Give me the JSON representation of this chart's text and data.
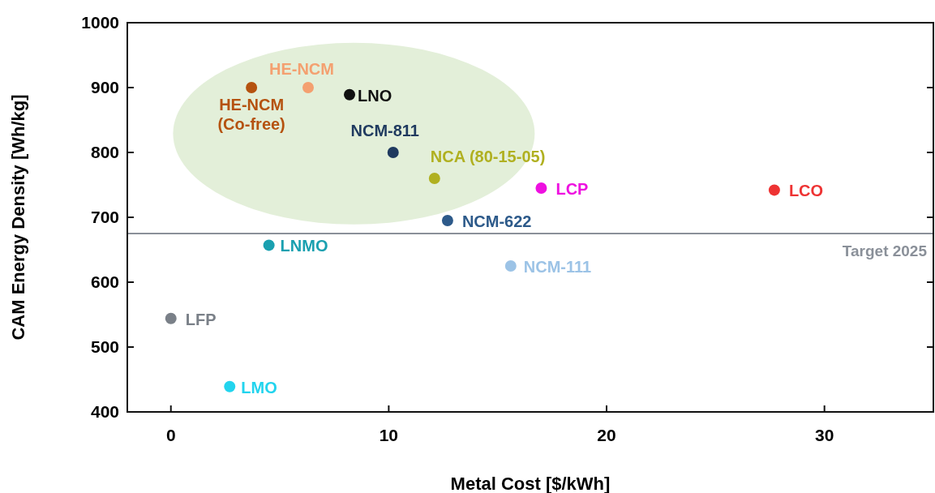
{
  "chart_data": {
    "type": "scatter",
    "xlabel": "Metal Cost [$/kWh]",
    "ylabel": "CAM Energy Density [Wh/kg]",
    "xlim": [
      -2,
      35
    ],
    "xticks": [
      0,
      10,
      20,
      30
    ],
    "ylim": [
      400,
      1000
    ],
    "yticks": [
      400,
      500,
      600,
      700,
      800,
      900,
      1000
    ],
    "grid": false,
    "marker": "circle",
    "ref_lines": [
      {
        "axis": "y",
        "value": 675,
        "label": "Target 2025",
        "color": "#8a9099"
      }
    ],
    "series": [
      {
        "name": "HE-NCM (Co-free)",
        "color": "#b5520f",
        "x": [
          3.7
        ],
        "values": [
          900
        ]
      },
      {
        "name": "HE-NCM",
        "color": "#f4a070",
        "x": [
          6.3
        ],
        "values": [
          900
        ]
      },
      {
        "name": "LNO",
        "color": "#111111",
        "x": [
          8.2
        ],
        "values": [
          889
        ]
      },
      {
        "name": "NCM-811",
        "color": "#1f3a5f",
        "x": [
          10.2
        ],
        "values": [
          800
        ]
      },
      {
        "name": "NCA (80-15-05)",
        "color": "#b0b020",
        "x": [
          12.1
        ],
        "values": [
          760
        ]
      },
      {
        "name": "LCP",
        "color": "#ee10e0",
        "x": [
          17.0
        ],
        "values": [
          745
        ]
      },
      {
        "name": "LCO",
        "color": "#ee3333",
        "x": [
          27.7
        ],
        "values": [
          742
        ]
      },
      {
        "name": "NCM-622",
        "color": "#2d5a8a",
        "x": [
          12.7
        ],
        "values": [
          695
        ]
      },
      {
        "name": "LNMO",
        "color": "#1aa0b0",
        "x": [
          4.5
        ],
        "values": [
          657
        ]
      },
      {
        "name": "NCM-111",
        "color": "#9cc3e6",
        "x": [
          15.6
        ],
        "values": [
          625
        ]
      },
      {
        "name": "LFP",
        "color": "#7a8088",
        "x": [
          0
        ],
        "values": [
          544
        ]
      },
      {
        "name": "LMO",
        "color": "#22d4ee",
        "x": [
          2.7
        ],
        "values": [
          439
        ]
      }
    ]
  }
}
